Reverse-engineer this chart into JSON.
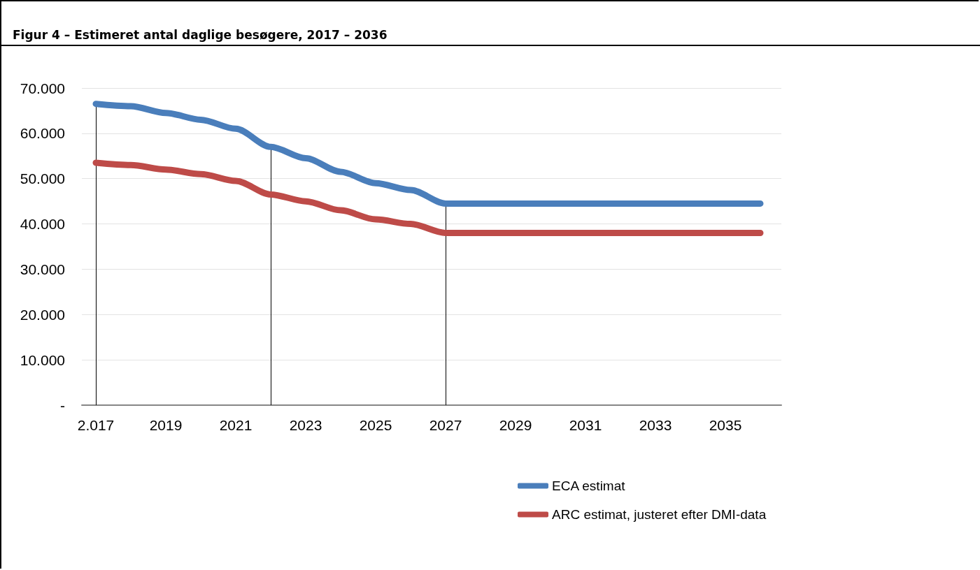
{
  "chart_data": {
    "type": "line",
    "title": "Figur 4 – Estimeret antal daglige besøgere, 2017 – 2036",
    "x": [
      2017,
      2018,
      2019,
      2020,
      2021,
      2022,
      2023,
      2024,
      2025,
      2026,
      2027,
      2028,
      2029,
      2030,
      2031,
      2032,
      2033,
      2034,
      2035,
      2036
    ],
    "series": [
      {
        "name": "ECA estimat",
        "color": "#4a7ebb",
        "values": [
          66500,
          66000,
          64500,
          63000,
          61000,
          57000,
          54500,
          51500,
          49000,
          47500,
          44500,
          44500,
          44500,
          44500,
          44500,
          44500,
          44500,
          44500,
          44500,
          44500
        ]
      },
      {
        "name": "ARC estimat, justeret efter DMI-data",
        "color": "#be4b48",
        "values": [
          53500,
          53000,
          52000,
          51000,
          49500,
          46500,
          45000,
          43000,
          41000,
          40000,
          38000,
          38000,
          38000,
          38000,
          38000,
          38000,
          38000,
          38000,
          38000,
          38000
        ]
      }
    ],
    "xlim": [
      2016.6,
      2036.6
    ],
    "xticks": [
      {
        "value": 2017,
        "label": "2.017"
      },
      2019,
      2021,
      2023,
      2025,
      2027,
      2029,
      2031,
      2033,
      2035
    ],
    "ylim": [
      0,
      70000
    ],
    "yticks": [
      {
        "value": 0,
        "label": "-"
      },
      {
        "value": 10000,
        "label": "10.000"
      },
      {
        "value": 20000,
        "label": "20.000"
      },
      {
        "value": 30000,
        "label": "30.000"
      },
      {
        "value": 40000,
        "label": "40.000"
      },
      {
        "value": 50000,
        "label": "50.000"
      },
      {
        "value": 60000,
        "label": "60.000"
      },
      {
        "value": 70000,
        "label": "70.000"
      }
    ],
    "ref_lines": [
      {
        "axis": "x",
        "value": 2017,
        "color": "#000000"
      },
      {
        "axis": "x",
        "value": 2022,
        "color": "#000000"
      },
      {
        "axis": "x",
        "value": 2027,
        "color": "#000000"
      }
    ],
    "grid": "y",
    "legend": "bottom right",
    "line_style": "solid"
  }
}
